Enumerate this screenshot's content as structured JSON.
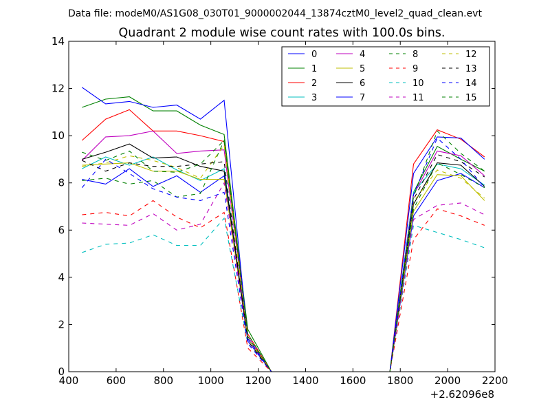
{
  "header": {
    "data_file": "Data file: modeM0/AS1G08_030T01_9000002044_13874cztM0_level2_quad_clean.evt"
  },
  "chart_data": {
    "type": "line",
    "title": "Quadrant 2 module wise count rates with 100.0s bins.",
    "xlabel": "",
    "ylabel": "",
    "x_offset_label": "+2.62096e8",
    "xlim": [
      400,
      2200
    ],
    "ylim": [
      0,
      14
    ],
    "x_ticks": [
      400,
      600,
      800,
      1000,
      1200,
      1400,
      1600,
      1800,
      2000,
      2200
    ],
    "y_ticks": [
      0,
      2,
      4,
      6,
      8,
      10,
      12,
      14
    ],
    "grid": false,
    "legend": {
      "placement": "top-right",
      "columns": 4
    },
    "x": [
      456,
      556,
      656,
      756,
      856,
      956,
      1056,
      1156,
      1256,
      1356,
      1456,
      1556,
      1656,
      1756,
      1856,
      1956,
      2056,
      2156
    ],
    "series": [
      {
        "name": "0",
        "color": "#0000ff",
        "dash": "solid",
        "values": [
          8.15,
          7.95,
          8.6,
          7.85,
          8.3,
          7.6,
          8.3,
          1.3,
          0,
          0,
          0,
          0,
          0,
          0,
          6.6,
          8.1,
          8.4,
          7.8
        ]
      },
      {
        "name": "1",
        "color": "#008000",
        "dash": "solid",
        "values": [
          11.2,
          11.55,
          11.65,
          11.05,
          11.05,
          10.45,
          10.05,
          1.8,
          0,
          0,
          0,
          0,
          0,
          0,
          7.6,
          9.55,
          9.0,
          8.5
        ]
      },
      {
        "name": "2",
        "color": "#ff0000",
        "dash": "solid",
        "values": [
          9.8,
          10.7,
          11.1,
          10.2,
          10.2,
          10.0,
          9.75,
          1.6,
          0,
          0,
          0,
          0,
          0,
          0,
          8.8,
          10.25,
          9.85,
          9.1
        ]
      },
      {
        "name": "3",
        "color": "#00bfbf",
        "dash": "solid",
        "values": [
          8.6,
          9.1,
          8.75,
          9.1,
          8.55,
          8.1,
          8.6,
          1.4,
          0,
          0,
          0,
          0,
          0,
          0,
          7.6,
          8.8,
          8.6,
          7.9
        ]
      },
      {
        "name": "4",
        "color": "#bf00bf",
        "dash": "solid",
        "values": [
          8.95,
          9.95,
          10.0,
          10.2,
          9.25,
          9.35,
          9.4,
          1.5,
          0,
          0,
          0,
          0,
          0,
          0,
          7.5,
          9.35,
          9.15,
          8.3
        ]
      },
      {
        "name": "5",
        "color": "#bfbf00",
        "dash": "solid",
        "values": [
          8.75,
          8.8,
          8.85,
          8.5,
          8.5,
          8.15,
          8.15,
          1.4,
          0,
          0,
          0,
          0,
          0,
          0,
          6.8,
          8.35,
          8.3,
          7.25
        ]
      },
      {
        "name": "6",
        "color": "#000000",
        "dash": "solid",
        "values": [
          9.0,
          9.3,
          9.65,
          9.05,
          9.1,
          8.7,
          8.5,
          1.4,
          0,
          0,
          0,
          0,
          0,
          0,
          7.1,
          8.85,
          8.75,
          7.85
        ]
      },
      {
        "name": "7",
        "color": "#0000ff",
        "dash": "solid",
        "values": [
          12.05,
          11.35,
          11.45,
          11.2,
          11.3,
          10.7,
          11.5,
          1.4,
          0,
          0,
          0,
          0,
          0,
          0,
          8.4,
          9.95,
          9.9,
          9.0
        ]
      },
      {
        "name": "8",
        "color": "#008000",
        "dash": "dashed",
        "values": [
          8.1,
          8.2,
          7.95,
          8.1,
          7.4,
          7.55,
          9.8,
          1.5,
          0,
          0,
          0,
          0,
          0,
          0,
          6.9,
          8.85,
          8.35,
          7.8
        ]
      },
      {
        "name": "9",
        "color": "#ff0000",
        "dash": "dashed",
        "values": [
          6.65,
          6.75,
          6.6,
          7.25,
          6.55,
          6.1,
          6.75,
          1.0,
          0,
          0,
          0,
          0,
          0,
          0,
          5.6,
          6.9,
          6.6,
          6.2
        ]
      },
      {
        "name": "10",
        "color": "#00bfbf",
        "dash": "dashed",
        "values": [
          5.05,
          5.4,
          5.45,
          5.8,
          5.35,
          5.35,
          6.5,
          1.2,
          0,
          0,
          0,
          0,
          0,
          0,
          6.2,
          5.9,
          5.6,
          5.25
        ]
      },
      {
        "name": "11",
        "color": "#bf00bf",
        "dash": "dashed",
        "values": [
          6.3,
          6.25,
          6.2,
          6.7,
          6.0,
          6.25,
          8.0,
          1.3,
          0,
          0,
          0,
          0,
          0,
          0,
          6.45,
          7.05,
          7.15,
          6.65
        ]
      },
      {
        "name": "12",
        "color": "#bfbf00",
        "dash": "dashed",
        "values": [
          8.7,
          8.85,
          9.15,
          8.95,
          8.65,
          8.2,
          9.6,
          1.4,
          0,
          0,
          0,
          0,
          0,
          0,
          7.2,
          8.55,
          8.2,
          7.35
        ]
      },
      {
        "name": "13",
        "color": "#000000",
        "dash": "dashed",
        "values": [
          8.95,
          8.5,
          8.85,
          8.7,
          8.7,
          8.8,
          8.9,
          1.3,
          0,
          0,
          0,
          0,
          0,
          0,
          7.3,
          9.2,
          8.9,
          8.25
        ]
      },
      {
        "name": "14",
        "color": "#0000ff",
        "dash": "dashed",
        "values": [
          7.8,
          9.0,
          8.4,
          7.75,
          7.4,
          7.25,
          7.6,
          1.2,
          0,
          0,
          0,
          0,
          0,
          0,
          7.5,
          9.9,
          9.0,
          7.8
        ]
      },
      {
        "name": "15",
        "color": "#008000",
        "dash": "dashed",
        "values": [
          9.3,
          8.95,
          9.35,
          8.5,
          8.45,
          8.8,
          9.8,
          1.6,
          0,
          0,
          0,
          0,
          0,
          0,
          7.4,
          10.2,
          9.25,
          8.5
        ]
      }
    ]
  }
}
